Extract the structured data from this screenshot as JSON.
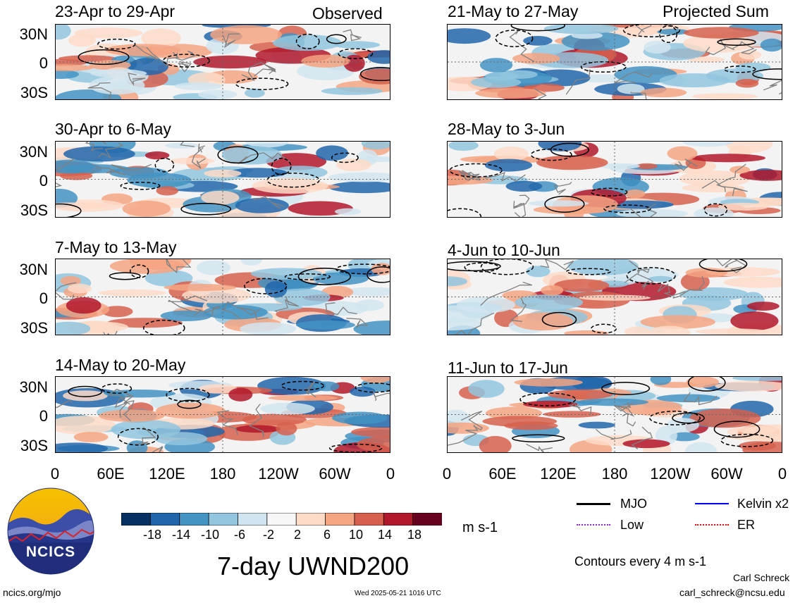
{
  "headings": {
    "left": "Observed",
    "right": "Projected Sum"
  },
  "panels": {
    "left": [
      "23-Apr to 29-Apr",
      "30-Apr to 6-May",
      "7-May to 13-May",
      "14-May to 20-May"
    ],
    "right": [
      "21-May to 27-May",
      "28-May to 3-Jun",
      "4-Jun to 10-Jun",
      "11-Jun to 17-Jun"
    ]
  },
  "lat_ticks": [
    "30N",
    "0",
    "30S"
  ],
  "lon_ticks": [
    "0",
    "60E",
    "120E",
    "180",
    "120W",
    "60W",
    "0"
  ],
  "colorbar": {
    "labels": [
      "-18",
      "-14",
      "-10",
      "-6",
      "-2",
      "2",
      "6",
      "10",
      "14",
      "18"
    ],
    "colors": [
      "#053061",
      "#2166ac",
      "#4393c3",
      "#92c5de",
      "#d1e5f0",
      "#f7f7f7",
      "#fddbc7",
      "#f4a582",
      "#d6604d",
      "#b2182b",
      "#67001f"
    ],
    "units": "m s-1"
  },
  "title": "7-day UWND200",
  "logo_text": "NCICS",
  "legend": {
    "items": [
      {
        "label": "MJO",
        "color": "#000000"
      },
      {
        "label": "Kelvin x2",
        "color": "#0000ff"
      },
      {
        "label": "Low",
        "color": "#a020f0"
      },
      {
        "label": "ER",
        "color": "#ff0000"
      }
    ],
    "contours": "Contours every 4 m s-1"
  },
  "footer": {
    "url": "ncics.org/mjo",
    "timestamp": "Wed 2025-05-21 1016 UTC",
    "author": "Carl Schreck",
    "email": "carl_schreck@ncsu.edu"
  }
}
